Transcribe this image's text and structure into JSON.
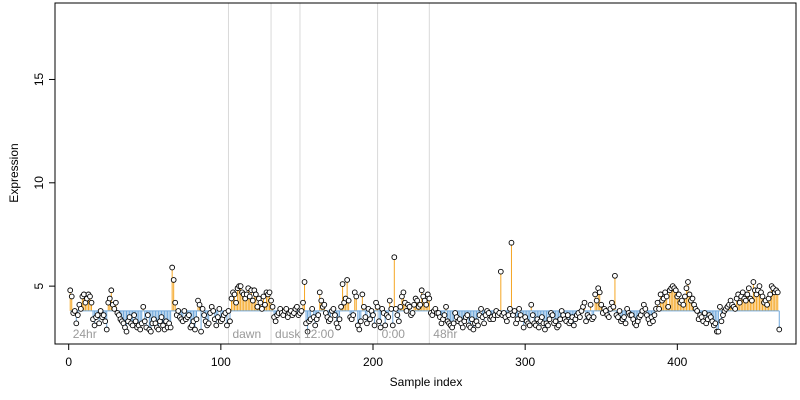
{
  "chart_data": {
    "type": "scatter",
    "title": "",
    "xlabel": "Sample index",
    "ylabel": "Expression",
    "xlim": [
      -9,
      478
    ],
    "ylim": [
      2.2,
      18.7
    ],
    "xticks": [
      0,
      100,
      200,
      300,
      400
    ],
    "yticks": [
      5,
      10,
      15
    ],
    "baseline": 3.8,
    "grid": false,
    "legend": "none",
    "colors": {
      "above_baseline": "#f5a623",
      "below_baseline": "#6fa8dc",
      "point_fill": "#ffffff",
      "point_stroke": "#000000",
      "phase_line": "#d9d9d9",
      "phase_text": "#9a9a9a"
    },
    "phase_markers": [
      {
        "label": "24hr",
        "x": 0
      },
      {
        "label": "dawn",
        "x": 105
      },
      {
        "label": "dusk",
        "x": 133
      },
      {
        "label": "12:00",
        "x": 152
      },
      {
        "label": "0:00",
        "x": 203
      },
      {
        "label": "48hr",
        "x": 237
      }
    ],
    "n_points": 462,
    "values": [
      4.8,
      4.5,
      3.7,
      3.8,
      3.2,
      3.6,
      4.1,
      3.9,
      4.5,
      4.6,
      4.2,
      4.4,
      4.6,
      4.5,
      4.2,
      3.4,
      3.1,
      3.5,
      3.6,
      3.2,
      3.8,
      3.5,
      3.6,
      3.3,
      2.9,
      4.2,
      4.4,
      4.8,
      4.1,
      3.9,
      4.2,
      3.7,
      3.6,
      3.4,
      3.3,
      3.2,
      3.0,
      2.8,
      3.3,
      3.5,
      3.2,
      3.1,
      3.6,
      3.3,
      3.0,
      3.1,
      2.9,
      3.2,
      4.0,
      3.3,
      3.0,
      3.6,
      2.9,
      2.8,
      3.2,
      3.4,
      3.2,
      3.0,
      2.9,
      3.3,
      3.5,
      3.1,
      2.9,
      3.3,
      3.0,
      3.2,
      3.0,
      5.9,
      5.3,
      4.2,
      3.6,
      3.8,
      3.5,
      3.4,
      3.3,
      3.8,
      3.4,
      3.5,
      3.6,
      3.0,
      3.1,
      3.3,
      2.9,
      3.4,
      4.3,
      4.1,
      2.8,
      3.9,
      3.6,
      3.3,
      3.1,
      3.2,
      3.7,
      4.0,
      3.8,
      3.4,
      3.1,
      3.5,
      3.9,
      3.3,
      3.4,
      3.6,
      3.7,
      3.1,
      3.8,
      3.3,
      4.4,
      4.7,
      4.6,
      4.2,
      4.9,
      5.0,
      5.0,
      4.7,
      4.6,
      4.4,
      4.6,
      4.9,
      4.5,
      4.8,
      4.3,
      4.8,
      4.6,
      4.0,
      4.4,
      4.2,
      3.9,
      4.5,
      4.1,
      4.7,
      4.6,
      4.7,
      4.3,
      4.0,
      3.5,
      3.3,
      3.6,
      3.7,
      3.9,
      3.7,
      3.6,
      3.8,
      3.9,
      3.5,
      3.7,
      3.8,
      3.6,
      3.7,
      3.9,
      4.0,
      3.6,
      3.7,
      3.8,
      4.2,
      5.2,
      3.2,
      2.8,
      3.3,
      3.4,
      3.9,
      3.5,
      3.1,
      3.4,
      3.6,
      4.7,
      4.3,
      4.0,
      4.1,
      3.7,
      3.5,
      3.3,
      3.4,
      3.8,
      3.9,
      3.6,
      3.2,
      3.0,
      3.4,
      4.0,
      5.1,
      4.2,
      4.4,
      5.3,
      4.3,
      3.5,
      3.4,
      3.6,
      4.7,
      4.5,
      3.1,
      2.9,
      3.3,
      4.6,
      4.0,
      3.5,
      3.2,
      3.9,
      3.4,
      3.8,
      3.6,
      3.1,
      4.2,
      4.0,
      3.3,
      3.0,
      3.9,
      3.7,
      3.1,
      3.6,
      3.5,
      4.3,
      3.9,
      3.1,
      6.4,
      3.9,
      3.6,
      3.3,
      4.0,
      4.5,
      4.7,
      4.2,
      3.8,
      4.1,
      4.0,
      3.6,
      3.7,
      4.1,
      4.4,
      4.3,
      4.0,
      4.1,
      4.8,
      4.5,
      4.3,
      4.1,
      4.6,
      4.4,
      3.7,
      3.6,
      3.8,
      3.9,
      3.7,
      3.7,
      3.5,
      3.2,
      3.4,
      3.6,
      4.0,
      3.3,
      3.2,
      3.1,
      3.0,
      3.2,
      3.7,
      3.5,
      3.3,
      3.4,
      3.2,
      3.0,
      3.3,
      3.5,
      3.6,
      3.1,
      3.0,
      3.4,
      2.9,
      3.2,
      3.3,
      3.1,
      3.6,
      3.9,
      3.5,
      3.2,
      3.6,
      3.8,
      3.7,
      3.4,
      3.5,
      3.4,
      3.6,
      3.8,
      3.6,
      3.7,
      5.7,
      3.6,
      3.7,
      3.5,
      3.3,
      3.6,
      3.9,
      7.1,
      3.6,
      3.8,
      3.2,
      3.4,
      3.9,
      3.6,
      3.4,
      3.0,
      3.5,
      3.3,
      3.2,
      3.1,
      4.1,
      3.6,
      3.2,
      3.1,
      3.4,
      3.0,
      3.3,
      3.5,
      3.2,
      2.9,
      3.2,
      3.1,
      3.4,
      3.7,
      3.6,
      3.2,
      3.3,
      3.0,
      3.1,
      3.4,
      3.8,
      3.6,
      3.4,
      3.3,
      3.6,
      3.2,
      3.3,
      3.5,
      3.1,
      3.4,
      3.6,
      3.7,
      3.5,
      3.8,
      4.0,
      4.2,
      3.3,
      3.6,
      3.5,
      4.1,
      3.4,
      3.5,
      4.6,
      4.3,
      4.9,
      4.7,
      4.1,
      3.7,
      3.9,
      3.8,
      3.6,
      3.5,
      3.9,
      4.2,
      4.0,
      5.5,
      3.6,
      3.5,
      3.8,
      3.3,
      3.4,
      3.5,
      3.2,
      3.9,
      3.7,
      3.6,
      3.6,
      3.4,
      3.2,
      3.1,
      3.3,
      3.5,
      3.6,
      3.8,
      4.1,
      3.9,
      3.6,
      3.4,
      3.2,
      3.5,
      3.3,
      3.6,
      3.9,
      4.2,
      3.9,
      4.6,
      4.3,
      4.4,
      4.7,
      4.5,
      4.0,
      4.8,
      4.9,
      5.0,
      4.9,
      4.8,
      4.5,
      4.6,
      4.2,
      4.3,
      4.1,
      4.5,
      4.9,
      5.2,
      4.6,
      4.3,
      4.4,
      4.1,
      3.9,
      3.8,
      3.4,
      3.6,
      3.5,
      3.3,
      3.7,
      3.2,
      3.4,
      3.6,
      3.5,
      3.3,
      3.1,
      3.2,
      2.8,
      2.8,
      4.0,
      3.3,
      3.6,
      3.8,
      3.9,
      4.0,
      4.1,
      4.3,
      4.1,
      4.0,
      3.9,
      4.4,
      4.6,
      4.2,
      4.5,
      4.7,
      4.4,
      4.3,
      4.6,
      4.9,
      4.4,
      4.3,
      5.2,
      4.8,
      4.6,
      4.8,
      5.0,
      4.7,
      4.5,
      4.2,
      4.3,
      4.1,
      4.4,
      4.6,
      5.0,
      4.9,
      4.7,
      4.8,
      4.7,
      2.9
    ]
  }
}
